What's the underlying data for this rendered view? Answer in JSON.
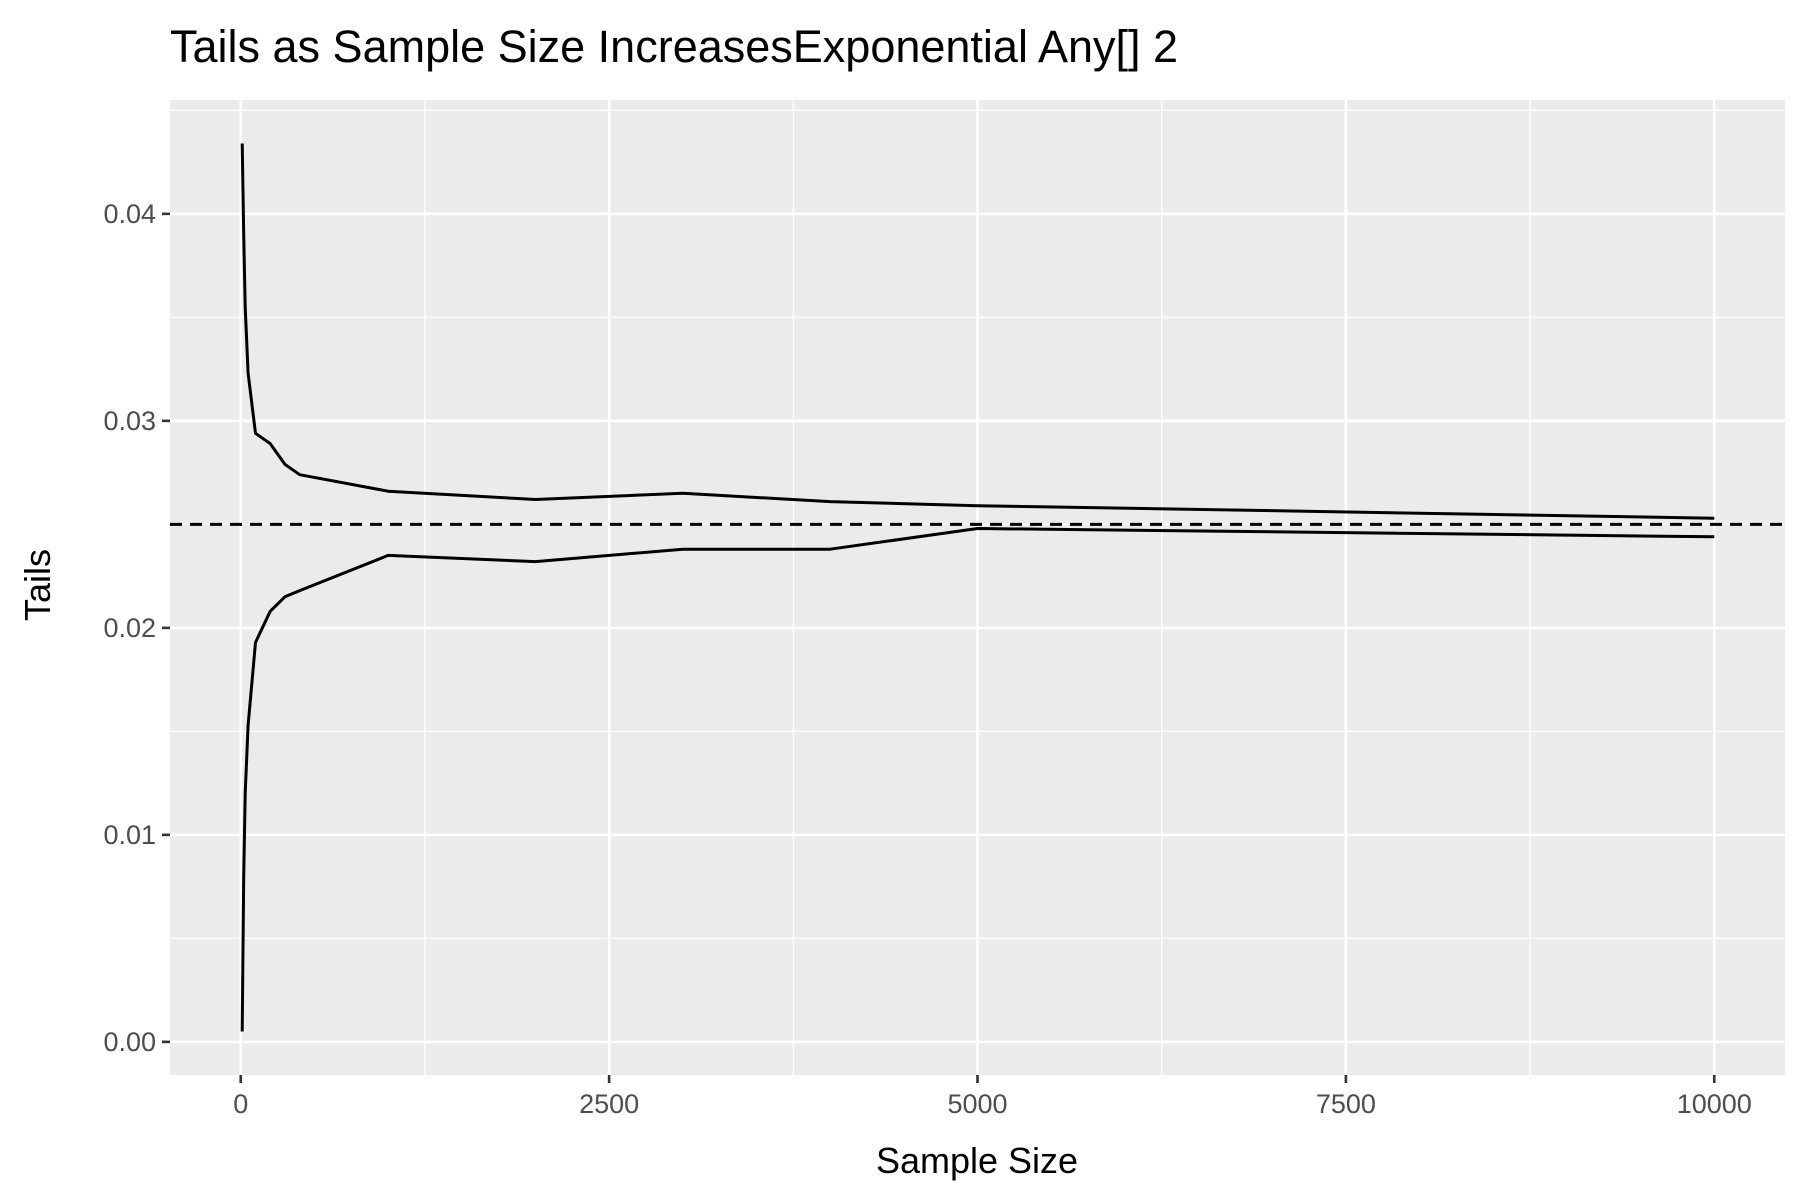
{
  "chart_data": {
    "type": "line",
    "title": "Tails as Sample Size IncreasesExponential Any[] 2",
    "xlabel": "Sample Size",
    "ylabel": "Tails",
    "xlim": [
      -480,
      10480
    ],
    "ylim": [
      -0.0016,
      0.0455
    ],
    "x_ticks": [
      0,
      2500,
      5000,
      7500,
      10000
    ],
    "x_tick_labels": [
      "0",
      "2500",
      "5000",
      "7500",
      "10000"
    ],
    "y_ticks": [
      0.0,
      0.01,
      0.02,
      0.03,
      0.04
    ],
    "y_tick_labels": [
      "0.00",
      "0.01",
      "0.02",
      "0.03",
      "0.04"
    ],
    "grid": true,
    "legend": "none",
    "reference_line": {
      "y": 0.025,
      "style": "dashed",
      "color": "#000000"
    },
    "series": [
      {
        "color": "#000000",
        "x": [
          10,
          20,
          30,
          50,
          100,
          200,
          300,
          400,
          1000,
          2000,
          3000,
          4000,
          5000,
          10000
        ],
        "y": [
          0.0434,
          0.039,
          0.0355,
          0.0323,
          0.0294,
          0.0289,
          0.0279,
          0.0274,
          0.0266,
          0.0262,
          0.0265,
          0.0261,
          0.0259,
          0.0253
        ]
      },
      {
        "color": "#000000",
        "x": [
          10,
          20,
          30,
          50,
          100,
          200,
          300,
          400,
          1000,
          2000,
          3000,
          4000,
          5000,
          10000
        ],
        "y": [
          0.0005,
          0.008,
          0.012,
          0.0153,
          0.0193,
          0.0208,
          0.0215,
          0.0218,
          0.0235,
          0.0232,
          0.0238,
          0.0238,
          0.0248,
          0.0244
        ]
      }
    ]
  },
  "style": {
    "panel_bg": "#ebebeb",
    "grid_color": "#ffffff",
    "tick_color": "#333333"
  }
}
